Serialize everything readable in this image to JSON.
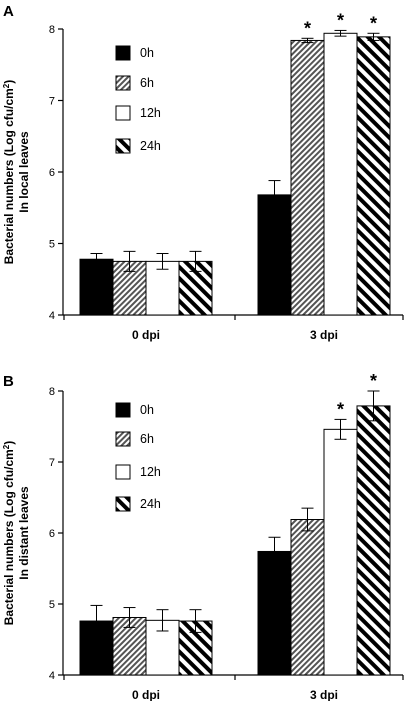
{
  "chart_data": [
    {
      "panel": "A",
      "type": "bar",
      "ylabel_line1": "Bacterial numbers (Log cfu/cm²)",
      "ylabel_line2": "In local leaves",
      "ylim": [
        4,
        8
      ],
      "yticks": [
        "4",
        "5",
        "6",
        "7",
        "8"
      ],
      "categories": [
        "0 dpi",
        "3 dpi"
      ],
      "legend_position": "top-left",
      "series": [
        {
          "name": "0h",
          "pattern": "solid",
          "values": [
            4.78,
            5.68
          ],
          "errors": [
            0.08,
            0.2
          ],
          "significant": [
            false,
            false
          ]
        },
        {
          "name": "6h",
          "pattern": "fine-hatch",
          "values": [
            4.75,
            7.84
          ],
          "errors": [
            0.14,
            0.03
          ],
          "significant": [
            false,
            true
          ]
        },
        {
          "name": "12h",
          "pattern": "white",
          "values": [
            4.75,
            7.94
          ],
          "errors": [
            0.11,
            0.04
          ],
          "significant": [
            false,
            true
          ]
        },
        {
          "name": "24h",
          "pattern": "wide-hatch",
          "values": [
            4.75,
            7.89
          ],
          "errors": [
            0.14,
            0.05
          ],
          "significant": [
            false,
            true
          ]
        }
      ]
    },
    {
      "panel": "B",
      "type": "bar",
      "ylabel_line1": "Bacterial numbers (Log cfu/cm²)",
      "ylabel_line2": "In distant leaves",
      "ylim": [
        4,
        8
      ],
      "yticks": [
        "4",
        "5",
        "6",
        "7",
        "8"
      ],
      "categories": [
        "0 dpi",
        "3 dpi"
      ],
      "legend_position": "top-left",
      "series": [
        {
          "name": "0h",
          "pattern": "solid",
          "values": [
            4.76,
            5.74
          ],
          "errors": [
            0.22,
            0.2
          ],
          "significant": [
            false,
            false
          ]
        },
        {
          "name": "6h",
          "pattern": "fine-hatch",
          "values": [
            4.81,
            6.19
          ],
          "errors": [
            0.14,
            0.16
          ],
          "significant": [
            false,
            false
          ]
        },
        {
          "name": "12h",
          "pattern": "white",
          "values": [
            4.77,
            7.46
          ],
          "errors": [
            0.15,
            0.14
          ],
          "significant": [
            false,
            true
          ]
        },
        {
          "name": "24h",
          "pattern": "wide-hatch",
          "values": [
            4.76,
            7.79
          ],
          "errors": [
            0.16,
            0.21
          ],
          "significant": [
            false,
            true
          ]
        }
      ]
    }
  ],
  "significance_marker": "*"
}
